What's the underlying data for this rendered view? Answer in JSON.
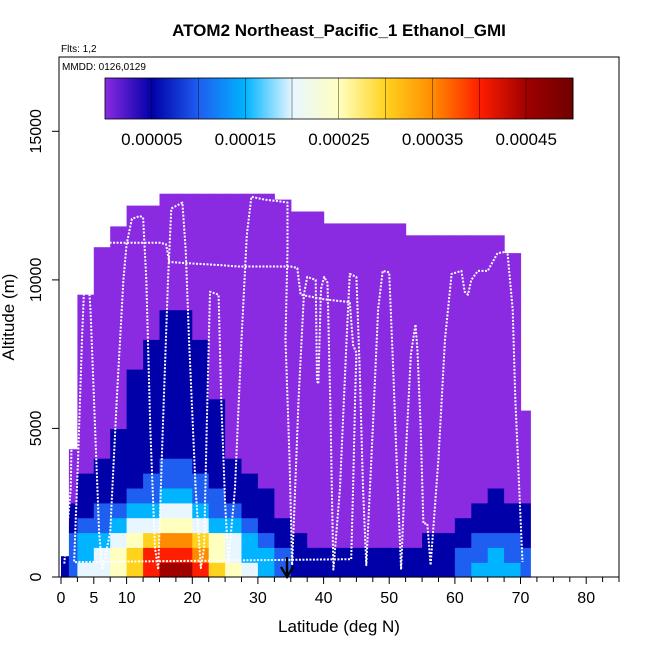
{
  "chart_data": {
    "type": "heatmap",
    "title": "ATOM2 Northeast_Pacific_1 Ethanol_GMI",
    "flights_label": "Flts: 1,2",
    "dates_label": "MMDD: 0126,0129",
    "xlabel": "Latitude (deg N)",
    "ylabel": "Altitude (m)",
    "xlim": [
      0,
      85
    ],
    "ylim": [
      0,
      17500
    ],
    "x_ticks": [
      {
        "value": 0,
        "label": "0"
      },
      {
        "value": 5,
        "label": "5"
      },
      {
        "value": 10,
        "label": "10"
      },
      {
        "value": 20,
        "label": "20"
      },
      {
        "value": 30,
        "label": "30"
      },
      {
        "value": 40,
        "label": "40"
      },
      {
        "value": 50,
        "label": "50"
      },
      {
        "value": 60,
        "label": "60"
      },
      {
        "value": 70,
        "label": "70"
      },
      {
        "value": 80,
        "label": "80"
      }
    ],
    "x_minor_ticks": [
      2.5,
      7.5,
      12.5,
      15,
      17.5,
      22.5,
      25,
      27.5,
      32.5,
      35,
      37.5,
      42.5,
      45,
      47.5,
      52.5,
      55,
      57.5,
      62.5,
      65,
      67.5,
      72.5,
      75,
      77.5,
      82.5,
      85
    ],
    "y_ticks": [
      {
        "value": 0,
        "label": "0"
      },
      {
        "value": 5000,
        "label": "5000"
      },
      {
        "value": 10000,
        "label": "10000"
      },
      {
        "value": 15000,
        "label": "15000"
      }
    ],
    "colorbar": {
      "range": [
        0,
        0.0005
      ],
      "segment_step": 5e-05,
      "labels": [
        {
          "value": 5e-05,
          "label": "0.00005"
        },
        {
          "value": 0.00015,
          "label": "0.00015"
        },
        {
          "value": 0.00025,
          "label": "0.00025"
        },
        {
          "value": 0.00035,
          "label": "0.00035"
        },
        {
          "value": 0.00045,
          "label": "0.00045"
        }
      ],
      "colors": [
        "#8a2be2",
        "#0000a8",
        "#1e5ef0",
        "#00b4ff",
        "#e8f6ff",
        "#ffffc0",
        "#ffd21e",
        "#ff8c00",
        "#ff1e00",
        "#a00000"
      ]
    },
    "lat_bins": [
      0,
      1.2,
      2.5,
      5,
      7.5,
      10,
      12.5,
      15,
      17.5,
      20,
      22.5,
      25,
      27.5,
      30,
      32.5,
      35,
      37.5,
      40,
      42.5,
      45,
      47.5,
      50,
      52.5,
      55,
      57.5,
      60,
      62.5,
      65,
      67.5,
      70,
      71.5
    ],
    "column_tops": [
      700,
      4300,
      9500,
      11100,
      11800,
      12500,
      12500,
      12900,
      12900,
      12900,
      12900,
      12900,
      12900,
      12900,
      12700,
      12300,
      12300,
      11900,
      11900,
      11900,
      11900,
      11900,
      11500,
      11500,
      11500,
      11500,
      11500,
      11500,
      10900,
      5600
    ],
    "row_tops": [
      500,
      1000,
      1500,
      2000,
      2500,
      3000,
      3500,
      4000,
      5000,
      6000,
      7000,
      8000,
      9000,
      10000,
      11000,
      12000,
      13000
    ],
    "row_profile": [
      0.00028,
      0.00026,
      0.00022,
      0.00016,
      0.00012,
      9e-05,
      7e-05,
      6e-05,
      5e-05,
      4.5e-05,
      4e-05,
      3.5e-05,
      3e-05,
      2e-05,
      1e-05,
      5e-06,
      5e-06
    ],
    "lat_factor": [
      0.3,
      0.5,
      0.75,
      0.85,
      1.0,
      1.25,
      1.55,
      1.7,
      1.7,
      1.5,
      1.15,
      0.95,
      0.75,
      0.6,
      0.4,
      0.3,
      0.2,
      0.2,
      0.2,
      0.2,
      0.2,
      0.2,
      0.22,
      0.25,
      0.3,
      0.4,
      0.55,
      0.6,
      0.55,
      0.45
    ],
    "flight_track": [
      [
        0.5,
        450
      ],
      [
        1.5,
        3000
      ],
      [
        2.0,
        10000
      ],
      [
        2.5,
        11250
      ],
      [
        5.0,
        11250
      ],
      [
        7.5,
        11250
      ],
      [
        10,
        11250
      ],
      [
        12.5,
        11250
      ],
      [
        15,
        11250
      ],
      [
        16,
        11200
      ],
      [
        16.5,
        10600
      ],
      [
        20,
        10550
      ],
      [
        24,
        10500
      ],
      [
        27,
        10450
      ],
      [
        31,
        10450
      ],
      [
        33,
        10450
      ],
      [
        35,
        10450
      ],
      [
        36,
        10400
      ],
      [
        36.5,
        9500
      ],
      [
        40,
        9350
      ],
      [
        42,
        9300
      ],
      [
        44,
        9250
      ],
      [
        44.5,
        7800
      ],
      [
        45,
        7550
      ],
      [
        44.8,
        6000
      ],
      [
        44.5,
        3000
      ],
      [
        44.2,
        600
      ],
      [
        2.0,
        500
      ],
      [
        2.6,
        4000
      ],
      [
        3.2,
        8000
      ],
      [
        3.8,
        11200
      ],
      [
        4.5,
        9000
      ],
      [
        5.2,
        5000
      ],
      [
        5.8,
        1500
      ],
      [
        6.3,
        250
      ],
      [
        7.5,
        1500
      ],
      [
        8.5,
        6000
      ],
      [
        9.5,
        10000
      ],
      [
        10,
        11200
      ],
      [
        10.8,
        12050
      ],
      [
        12,
        12150
      ],
      [
        12.5,
        12100
      ],
      [
        13,
        10000
      ],
      [
        13.6,
        5000
      ],
      [
        14.3,
        1000
      ],
      [
        14.8,
        250
      ],
      [
        15.5,
        5000
      ],
      [
        16.3,
        10000
      ],
      [
        16.8,
        12400
      ],
      [
        18.5,
        12600
      ],
      [
        19,
        11000
      ],
      [
        19.5,
        8000
      ],
      [
        20.5,
        3000
      ],
      [
        21.3,
        300
      ],
      [
        21.8,
        1000
      ],
      [
        22.2,
        5000
      ],
      [
        22.7,
        9600
      ],
      [
        24,
        9500
      ],
      [
        24.4,
        6000
      ],
      [
        25,
        2500
      ],
      [
        25.5,
        500
      ],
      [
        26.5,
        3000
      ],
      [
        27.5,
        8000
      ],
      [
        28.3,
        11500
      ],
      [
        29,
        12800
      ],
      [
        31,
        12700
      ],
      [
        33,
        12650
      ],
      [
        34.5,
        12600
      ],
      [
        34.5,
        11000
      ],
      [
        34.2,
        8000
      ],
      [
        34.8,
        4000
      ],
      [
        35.2,
        400
      ],
      [
        35.5,
        2000
      ],
      [
        36.2,
        6000
      ],
      [
        37,
        9500
      ],
      [
        37.5,
        10100
      ],
      [
        38.8,
        10000
      ],
      [
        39,
        6600
      ],
      [
        39.2,
        6500
      ],
      [
        39.6,
        9700
      ],
      [
        40.1,
        10100
      ],
      [
        40.6,
        9900
      ],
      [
        41,
        6000
      ],
      [
        41.3,
        2500
      ],
      [
        41.5,
        250
      ],
      [
        42.5,
        3000
      ],
      [
        43.5,
        8000
      ],
      [
        44,
        10200
      ],
      [
        45,
        10100
      ],
      [
        45.5,
        7000
      ],
      [
        46,
        3000
      ],
      [
        46.5,
        400
      ],
      [
        47.5,
        5000
      ],
      [
        48.3,
        9000
      ],
      [
        49,
        10300
      ],
      [
        50,
        10250
      ],
      [
        50.6,
        7000
      ],
      [
        51.2,
        3500
      ],
      [
        51.8,
        250
      ],
      [
        52.5,
        4000
      ],
      [
        53.3,
        7500
      ],
      [
        54,
        8500
      ],
      [
        54.3,
        7600
      ],
      [
        54.8,
        5000
      ],
      [
        55.2,
        1800
      ],
      [
        55.8,
        1800
      ],
      [
        56.3,
        400
      ],
      [
        57.5,
        4000
      ],
      [
        58.5,
        8000
      ],
      [
        59.5,
        10200
      ],
      [
        61,
        10300
      ],
      [
        61.5,
        9600
      ],
      [
        62,
        9500
      ],
      [
        62.5,
        10000
      ],
      [
        63.5,
        10300
      ],
      [
        65,
        10300
      ],
      [
        66.5,
        10900
      ],
      [
        68,
        10950
      ],
      [
        68.8,
        9000
      ],
      [
        69.2,
        6000
      ],
      [
        69.6,
        4000
      ],
      [
        70,
        2000
      ],
      [
        70.3,
        500
      ]
    ]
  }
}
